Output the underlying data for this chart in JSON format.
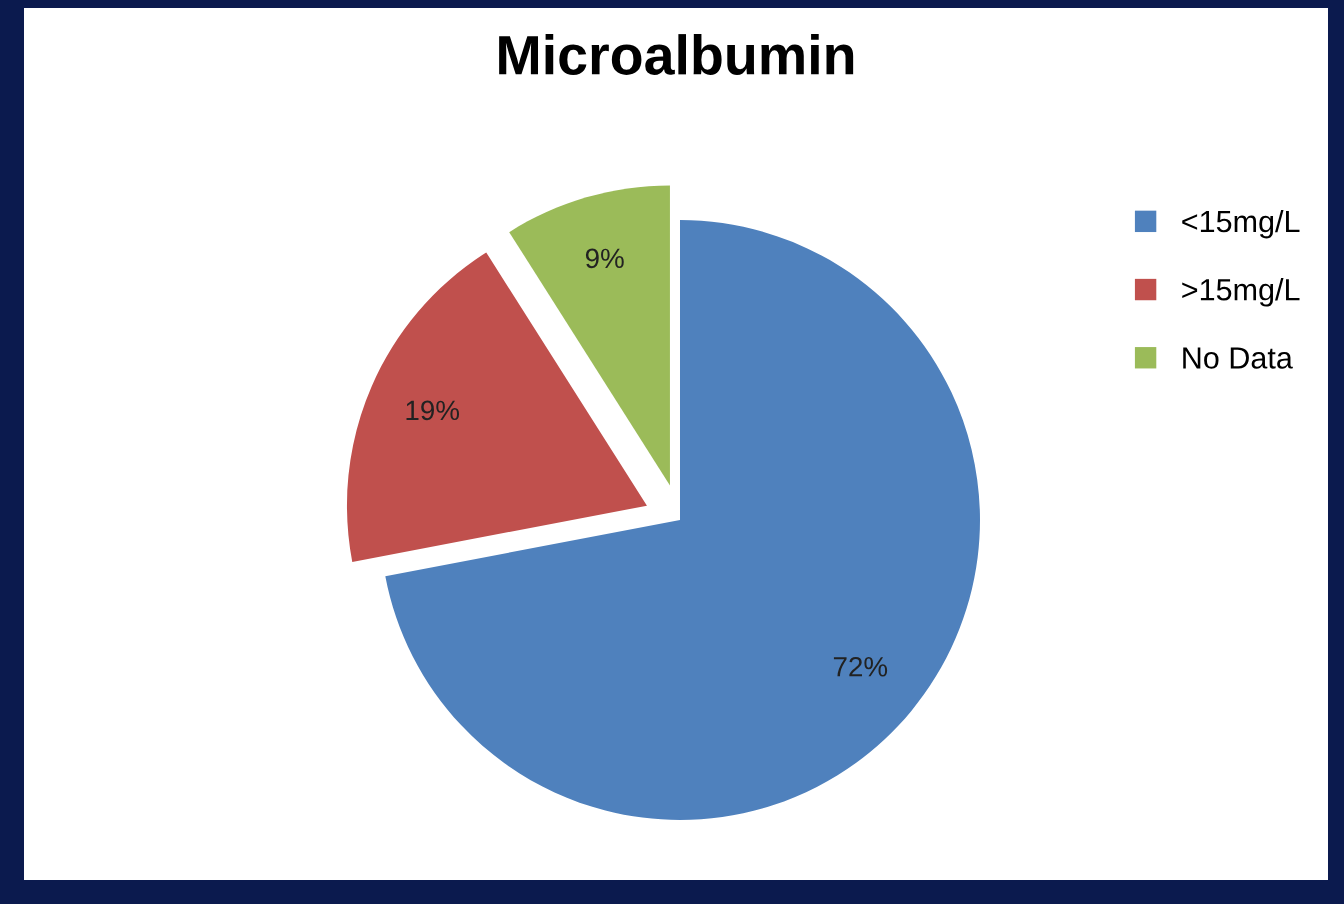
{
  "chart_data": {
    "type": "pie",
    "title": "Microalbumin",
    "categories": [
      "<15mg/L",
      ">15mg/L",
      "No Data"
    ],
    "values": [
      72,
      19,
      9
    ],
    "colors": [
      "#4f81bd",
      "#c0504d",
      "#9bbb59"
    ],
    "value_labels": [
      "72%",
      "19%",
      "9%"
    ],
    "legend": "right"
  }
}
